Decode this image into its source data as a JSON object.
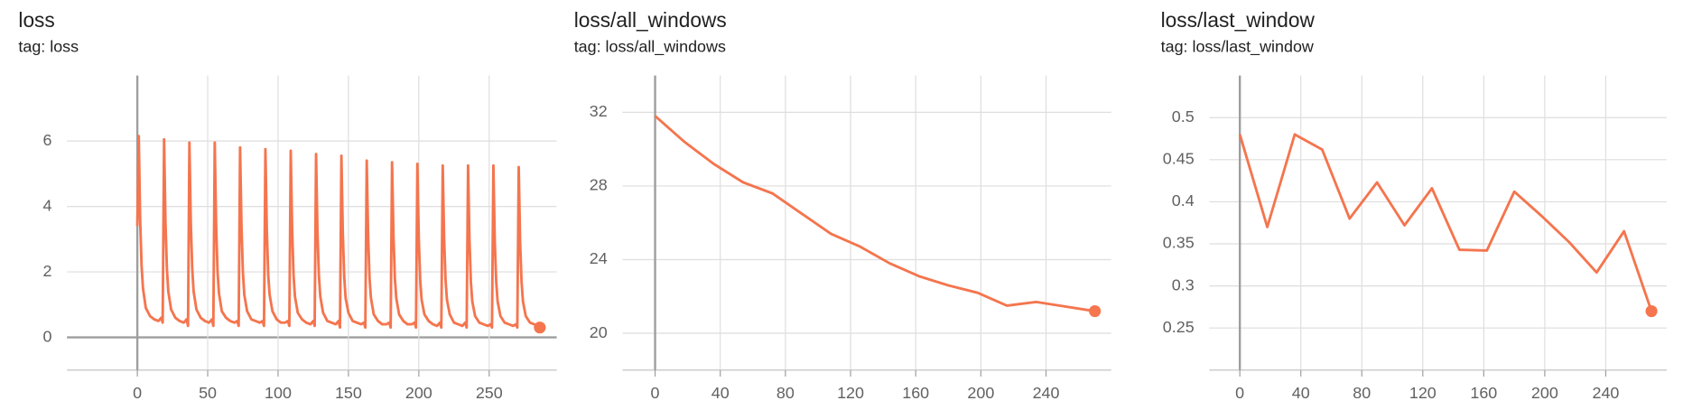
{
  "chart_data": [
    {
      "type": "line",
      "title": "loss",
      "subtitle": "tag: loss",
      "color": "#f4754e",
      "grid": true,
      "x": [
        0,
        1,
        2,
        3,
        4,
        6,
        9,
        12,
        15,
        17,
        18,
        19,
        20,
        21,
        22,
        24,
        27,
        30,
        33,
        35,
        36,
        37,
        38,
        39,
        40,
        42,
        45,
        48,
        51,
        53,
        54,
        55,
        56,
        57,
        58,
        60,
        63,
        66,
        69,
        71,
        72,
        73,
        74,
        75,
        76,
        78,
        81,
        84,
        87,
        89,
        90,
        91,
        92,
        93,
        94,
        96,
        99,
        102,
        105,
        107,
        108,
        109,
        110,
        111,
        112,
        114,
        117,
        120,
        123,
        125,
        126,
        127,
        128,
        129,
        130,
        132,
        135,
        138,
        141,
        143,
        144,
        145,
        146,
        147,
        148,
        150,
        153,
        156,
        159,
        161,
        162,
        163,
        164,
        165,
        166,
        168,
        171,
        174,
        177,
        179,
        180,
        181,
        182,
        183,
        184,
        186,
        189,
        192,
        195,
        197,
        198,
        199,
        200,
        201,
        202,
        204,
        207,
        210,
        213,
        215,
        216,
        217,
        218,
        219,
        220,
        222,
        225,
        228,
        231,
        233,
        234,
        235,
        236,
        237,
        238,
        240,
        243,
        246,
        249,
        251,
        252,
        253,
        254,
        255,
        256,
        258,
        261,
        264,
        267,
        269,
        270,
        271,
        272,
        273,
        274,
        276,
        279,
        282,
        286
      ],
      "values": [
        3.4,
        6.15,
        3.6,
        2.2,
        1.5,
        0.9,
        0.65,
        0.55,
        0.5,
        0.6,
        0.45,
        6.05,
        3.5,
        2.1,
        1.4,
        0.85,
        0.6,
        0.5,
        0.45,
        0.55,
        0.35,
        5.95,
        3.5,
        2.1,
        1.4,
        0.85,
        0.6,
        0.5,
        0.45,
        0.55,
        0.35,
        5.95,
        3.4,
        2.0,
        1.35,
        0.8,
        0.6,
        0.5,
        0.45,
        0.5,
        0.35,
        5.8,
        3.4,
        2.0,
        1.3,
        0.8,
        0.55,
        0.5,
        0.45,
        0.5,
        0.35,
        5.75,
        3.3,
        1.9,
        1.3,
        0.8,
        0.55,
        0.45,
        0.45,
        0.5,
        0.35,
        5.7,
        3.3,
        1.9,
        1.25,
        0.75,
        0.55,
        0.45,
        0.4,
        0.5,
        0.35,
        5.6,
        3.2,
        1.9,
        1.25,
        0.75,
        0.5,
        0.45,
        0.4,
        0.5,
        0.3,
        5.55,
        3.2,
        1.85,
        1.2,
        0.75,
        0.5,
        0.45,
        0.4,
        0.45,
        0.3,
        5.4,
        3.1,
        1.8,
        1.2,
        0.7,
        0.5,
        0.4,
        0.4,
        0.45,
        0.3,
        5.35,
        3.1,
        1.8,
        1.2,
        0.7,
        0.5,
        0.4,
        0.4,
        0.45,
        0.3,
        5.3,
        3.0,
        1.75,
        1.15,
        0.7,
        0.5,
        0.4,
        0.35,
        0.45,
        0.3,
        5.25,
        3.0,
        1.75,
        1.15,
        0.7,
        0.45,
        0.4,
        0.35,
        0.45,
        0.3,
        5.25,
        3.0,
        1.7,
        1.1,
        0.65,
        0.45,
        0.4,
        0.35,
        0.4,
        0.3,
        5.25,
        2.9,
        1.7,
        1.1,
        0.65,
        0.45,
        0.4,
        0.35,
        0.4,
        0.3,
        5.2,
        2.9,
        1.7,
        1.1,
        0.65,
        0.45,
        0.4,
        0.3
      ],
      "xlim": [
        -50,
        298
      ],
      "xticks": [
        0,
        50,
        100,
        150,
        200,
        250
      ],
      "ylim": [
        -1,
        8
      ],
      "yticks": [
        0,
        2,
        4,
        6
      ]
    },
    {
      "type": "line",
      "title": "loss/all_windows",
      "subtitle": "tag: loss/all_windows",
      "color": "#f4754e",
      "grid": true,
      "x": [
        0,
        18,
        36,
        54,
        72,
        90,
        108,
        126,
        144,
        162,
        180,
        198,
        216,
        234,
        270
      ],
      "values": [
        31.8,
        30.4,
        29.2,
        28.2,
        27.6,
        26.5,
        25.4,
        24.7,
        23.8,
        23.1,
        22.6,
        22.2,
        21.5,
        21.7,
        21.2
      ],
      "xlim": [
        -20,
        280
      ],
      "xticks": [
        0,
        40,
        80,
        120,
        160,
        200,
        240
      ],
      "ylim": [
        18,
        34
      ],
      "yticks": [
        20,
        24,
        28,
        32
      ]
    },
    {
      "type": "line",
      "title": "loss/last_window",
      "subtitle": "tag: loss/last_window",
      "color": "#f4754e",
      "grid": true,
      "x": [
        0,
        18,
        36,
        54,
        72,
        90,
        108,
        126,
        144,
        162,
        180,
        198,
        216,
        234,
        252,
        270
      ],
      "values": [
        0.48,
        0.37,
        0.48,
        0.462,
        0.38,
        0.423,
        0.372,
        0.416,
        0.343,
        0.342,
        0.412,
        0.383,
        0.352,
        0.316,
        0.365,
        0.27
      ],
      "xlim": [
        -20,
        280
      ],
      "xticks": [
        0,
        40,
        80,
        120,
        160,
        200,
        240
      ],
      "ylim": [
        0.2,
        0.55
      ],
      "yticks": [
        0.25,
        0.3,
        0.35,
        0.4,
        0.45,
        0.5
      ]
    }
  ]
}
